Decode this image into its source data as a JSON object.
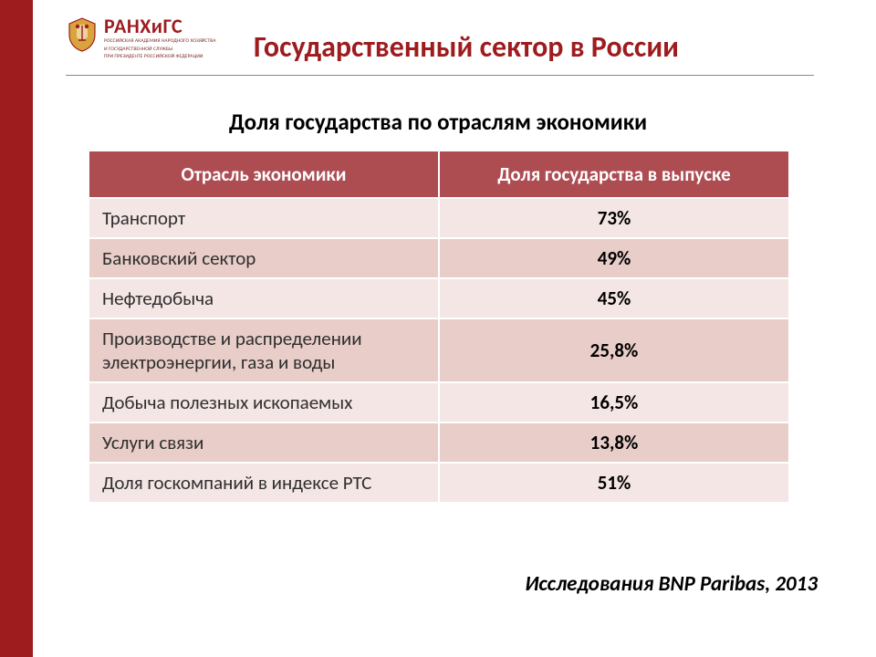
{
  "colors": {
    "brand_red": "#9e1b1e",
    "brand_dark_red": "#7a1f1f",
    "header_bg": "#ad4d52",
    "row_light": "#f4e6e4",
    "row_dark": "#e8cdc9",
    "text_black": "#000000",
    "text_dark": "#2f2f2f",
    "white": "#ffffff"
  },
  "logo": {
    "main": "РАНХиГС",
    "sub1": "РОССИЙСКАЯ АКАДЕМИЯ НАРОДНОГО ХОЗЯЙСТВА",
    "sub2": "И ГОСУДАРСТВЕННОЙ СЛУЖБЫ",
    "sub3": "ПРИ ПРЕЗИДЕНТЕ РОССИЙСКОЙ ФЕДЕРАЦИИ"
  },
  "title": "Государственный сектор в России",
  "subtitle": "Доля государства по отраслям экономики",
  "table": {
    "type": "table",
    "header_fontsize": 21,
    "cell_fontsize": 21,
    "columns": [
      {
        "label": "Отрасль экономики",
        "align": "left",
        "width_pct": 50
      },
      {
        "label": "Доля государства в выпуске",
        "align": "center",
        "width_pct": 50
      }
    ],
    "rows": [
      {
        "sector": "Транспорт",
        "value": "73%"
      },
      {
        "sector": "Банковский сектор",
        "value": "49%"
      },
      {
        "sector": "Нефтедобыча",
        "value": "45%"
      },
      {
        "sector": "Производстве и распределении электроэнергии, газа и воды",
        "value": "25,8%"
      },
      {
        "sector": "Добыча полезных ископаемых",
        "value": "16,5%"
      },
      {
        "sector": "Услуги связи",
        "value": "13,8%"
      },
      {
        "sector": "Доля госкомпаний в индексе РТС",
        "value": "51%"
      }
    ]
  },
  "source": "Исследования BNP Paribas, 2013"
}
